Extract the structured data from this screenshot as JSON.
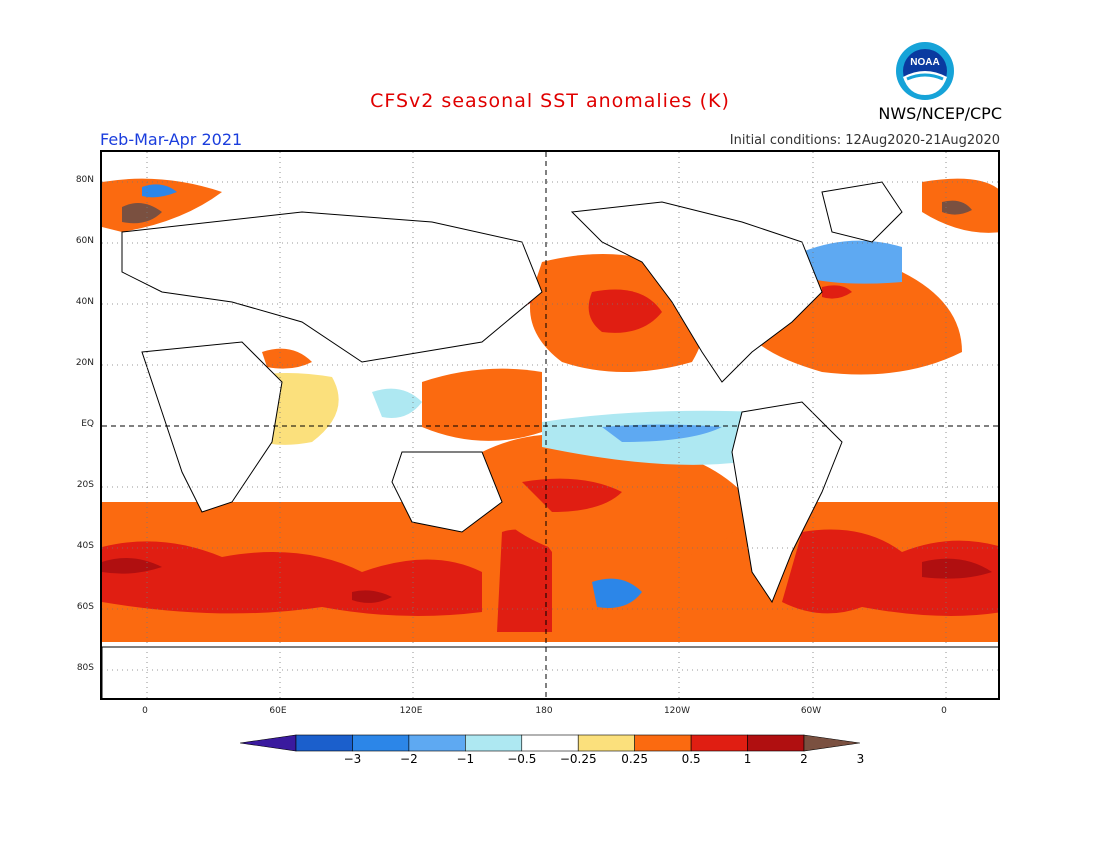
{
  "header": {
    "title": "CFSv2 seasonal SST anomalies (K)",
    "period": "Feb-Mar-Apr 2021",
    "initial_conditions": "Initial conditions: 12Aug2020-21Aug2020",
    "agency": "NWS/NCEP/CPC",
    "logo_text": "NOAA"
  },
  "axes": {
    "lat_labels": [
      "80N",
      "60N",
      "40N",
      "20N",
      "EQ",
      "20S",
      "40S",
      "60S",
      "80S"
    ],
    "lon_labels": [
      "0",
      "60E",
      "120E",
      "180",
      "120W",
      "60W",
      "0"
    ]
  },
  "colorbar": {
    "labels": [
      "-3",
      "-2",
      "-1",
      "-0.5",
      "-0.25",
      "0.25",
      "0.5",
      "1",
      "2",
      "3"
    ],
    "colors": [
      "#3a1a9e",
      "#1b5fcc",
      "#2c86e8",
      "#5ea9f2",
      "#aee8f2",
      "#ffffff",
      "#fbe07c",
      "#fb6a10",
      "#e01e12",
      "#b00f10",
      "#7a5040"
    ]
  },
  "legend_colors": {
    "land": "#ffffff",
    "coastline": "#000000"
  }
}
